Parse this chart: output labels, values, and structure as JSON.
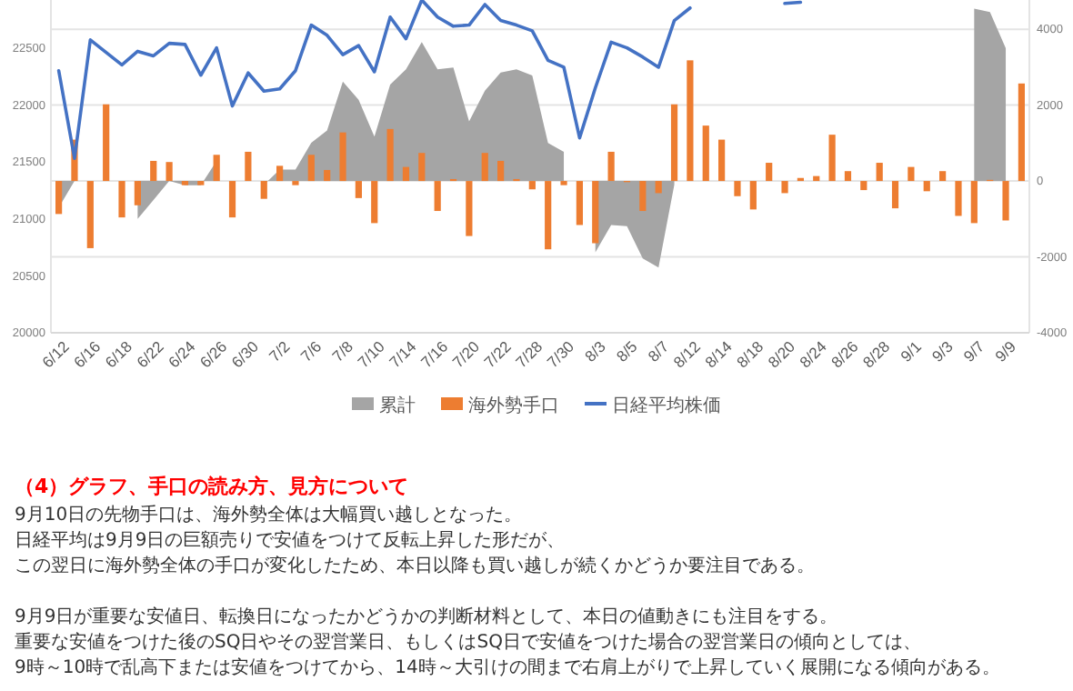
{
  "chart_data": {
    "type": "bar",
    "title": "（4）グラフ、手口の読み方、見方について",
    "categories": [
      "6/12",
      null,
      "6/16",
      null,
      "6/18",
      null,
      "6/22",
      null,
      "6/24",
      null,
      "6/26",
      null,
      "6/30",
      null,
      "7/2",
      null,
      "7/6",
      null,
      "7/8",
      null,
      "7/10",
      null,
      "7/14",
      null,
      "7/16",
      null,
      "7/20",
      null,
      "7/22",
      null,
      "7/28",
      null,
      "7/30",
      null,
      "8/3",
      null,
      "8/5",
      null,
      "8/7",
      null,
      "8/12",
      null,
      "8/14",
      null,
      "8/18",
      null,
      "8/20",
      null,
      "8/24",
      null,
      "8/26",
      null,
      "8/28",
      null,
      "9/1",
      null,
      "9/3",
      null,
      "9/7",
      null,
      "9/9",
      null
    ],
    "series": [
      {
        "name": "累計",
        "type": "area",
        "axis": "y2",
        "color": "#a5a5a5",
        "values": [
          -700,
          0,
          null,
          null,
          null,
          -1000,
          -500,
          0,
          -110,
          -110,
          530,
          null,
          null,
          -100,
          300,
          300,
          1010,
          1330,
          2620,
          2140,
          1170,
          2540,
          2940,
          3660,
          2940,
          2990,
          1570,
          2380,
          2860,
          2940,
          2780,
          1000,
          770,
          null,
          -1880,
          -1160,
          -1190,
          -2040,
          -2280,
          -100,
          null,
          null,
          null,
          null,
          null,
          null,
          null,
          null,
          null,
          null,
          null,
          null,
          null,
          null,
          null,
          null,
          null,
          null,
          4540,
          4450,
          3500,
          null
        ]
      },
      {
        "name": "海外勢手口",
        "axis": "y2",
        "color": "#ed7d31",
        "values": [
          -870,
          1090,
          -1770,
          2020,
          -960,
          -640,
          530,
          500,
          -110,
          -110,
          690,
          -960,
          770,
          -470,
          400,
          -110,
          690,
          290,
          1280,
          -450,
          -1110,
          1370,
          370,
          740,
          -790,
          50,
          -1450,
          740,
          530,
          50,
          -220,
          -1800,
          -110,
          -1160,
          -1640,
          770,
          -30,
          -790,
          -320,
          2020,
          3180,
          1460,
          1090,
          -400,
          -750,
          480,
          -320,
          80,
          130,
          1220,
          260,
          -240,
          480,
          -720,
          370,
          -270,
          260,
          -920,
          -1110,
          30,
          -1040,
          2570
        ]
      },
      {
        "name": "日経平均株価",
        "type": "line",
        "color": "#4472c4",
        "values": [
          22300,
          21530,
          22570,
          22460,
          22350,
          22470,
          22430,
          22540,
          22530,
          22260,
          22500,
          21990,
          22280,
          22120,
          22140,
          22300,
          22700,
          22610,
          22440,
          22520,
          22290,
          22770,
          22580,
          22920,
          22770,
          22690,
          22700,
          22880,
          22740,
          22700,
          22650,
          22390,
          22330,
          21710,
          22150,
          22550,
          22500,
          22420,
          22330,
          22740,
          22850,
          null,
          null,
          null,
          null,
          null,
          22890,
          22900,
          null,
          null,
          null,
          null,
          null,
          null,
          null,
          null,
          null,
          null,
          null,
          null,
          null,
          null
        ]
      }
    ],
    "ylim": [
      20000,
      22920
    ],
    "yticks": [
      20000,
      20500,
      21000,
      21500,
      22000,
      22500
    ],
    "y2lim": [
      -4000,
      4770
    ],
    "y2ticks": [
      -4000,
      -2000,
      0,
      2000,
      4000
    ],
    "grid": "y2",
    "legend": "bottom",
    "line_style": "solid",
    "marker": "none",
    "annotations": [
      "9月10日の先物手口は、海外勢全体は大幅買い越しとなった。",
      "日経平均は9月9日の巨額売りで安値をつけて反転上昇した形だが、",
      "この翌日に海外勢全体の手口が変化したため、本日以降も買い越しが続くかどうか要注目である。",
      "9月9日が重要な安値日、転換日になったかどうかの判断材料として、本日の値動きにも注目をする。",
      "重要な安値をつけた後のSQ日やその翌営業日、もしくはSQ日で安値をつけた場合の翌営業日の傾向としては、",
      "9時～10時で乱高下または安値をつけてから、14時～大引けの間まで右肩上がりで上昇していく展開になる傾向がある。"
    ]
  }
}
